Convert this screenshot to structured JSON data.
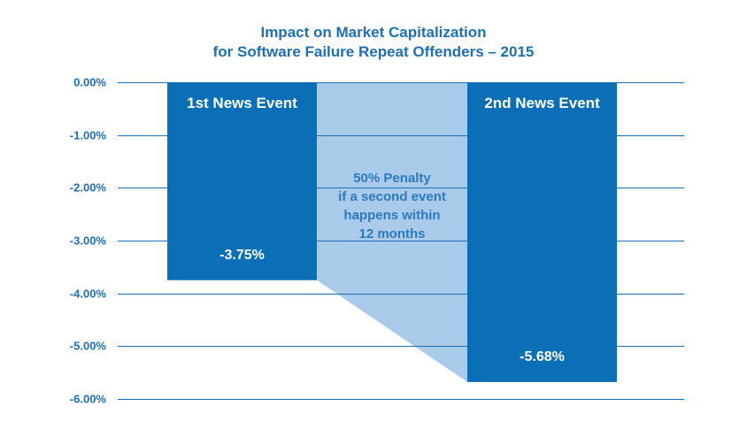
{
  "chart_data": {
    "type": "bar",
    "title": "Impact on Market Capitalization",
    "subtitle": "for Software Failure Repeat Offenders – 2015",
    "categories": [
      "1st News Event",
      "2nd News Event"
    ],
    "values": [
      -3.75,
      -5.68
    ],
    "value_labels": [
      "-3.75%",
      "-5.68%"
    ],
    "ylim": [
      -6,
      0
    ],
    "yticks": [
      0,
      -1,
      -2,
      -3,
      -4,
      -5,
      -6
    ],
    "ytick_labels": [
      "0.00%",
      "-1.00%",
      "-2.00%",
      "-3.00%",
      "-4.00%",
      "-5.00%",
      "-6.00%"
    ],
    "grid": true,
    "annotation": {
      "lines": [
        "50% Penalty",
        "if a second event",
        "happens within",
        "12 months"
      ]
    }
  },
  "colors": {
    "bar": "#0b6fb8",
    "connector": "#a9cbe9",
    "grid": "#1f6fb6",
    "text": "#1f6fb6",
    "annotation_text": "#2b79bf"
  }
}
